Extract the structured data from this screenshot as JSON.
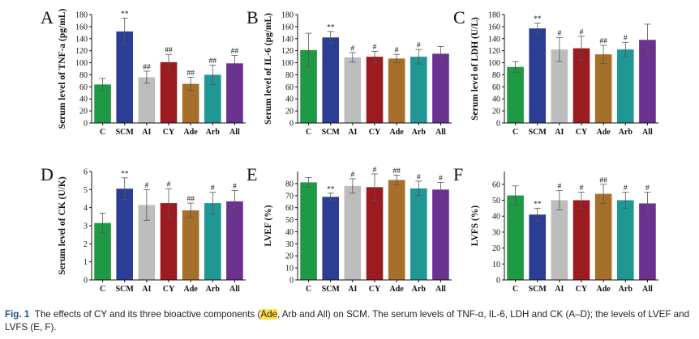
{
  "chart_data": [
    {
      "panel": "A",
      "type": "bar",
      "ylabel": "Serum level of TNF-a (pg/mL)",
      "categories": [
        "C",
        "SCM",
        "AI",
        "CY",
        "Ade",
        "Arb",
        "All"
      ],
      "values": [
        64,
        152,
        76,
        101,
        65,
        80,
        99
      ],
      "errors": [
        10,
        22,
        10,
        13,
        11,
        16,
        13
      ],
      "annotations": [
        "",
        "**",
        "##",
        "##",
        "##",
        "##",
        "##"
      ],
      "ylim": [
        0,
        180
      ],
      "yticks": [
        0,
        20,
        40,
        60,
        80,
        100,
        120,
        140,
        160,
        180
      ]
    },
    {
      "panel": "B",
      "type": "bar",
      "ylabel": "Serum level of IL-6 (pg/mL)",
      "categories": [
        "C",
        "SCM",
        "AI",
        "CY",
        "Ade",
        "Arb",
        "All"
      ],
      "values": [
        121,
        142,
        109,
        110,
        107,
        110,
        115
      ],
      "errors": [
        28,
        10,
        8,
        9,
        7,
        12,
        12
      ],
      "annotations": [
        "",
        "**",
        "#",
        "#",
        "#",
        "#",
        ""
      ],
      "ylim": [
        0,
        180
      ],
      "yticks": [
        0,
        20,
        40,
        60,
        80,
        100,
        120,
        140,
        160,
        180
      ]
    },
    {
      "panel": "C",
      "type": "bar",
      "ylabel": "Serum level of LDH (U/L)",
      "categories": [
        "C",
        "SCM",
        "AI",
        "CY",
        "Ade",
        "Arb",
        "All"
      ],
      "values": [
        93,
        157,
        122,
        124,
        114,
        122,
        138
      ],
      "errors": [
        9,
        9,
        20,
        20,
        15,
        12,
        26
      ],
      "annotations": [
        "",
        "**",
        "#",
        "#",
        "##",
        "#",
        ""
      ],
      "ylim": [
        0,
        180
      ],
      "yticks": [
        0,
        20,
        40,
        60,
        80,
        100,
        120,
        140,
        160,
        180
      ]
    },
    {
      "panel": "D",
      "type": "bar",
      "ylabel": "Serum level of CK (U/K)",
      "categories": [
        "C",
        "SCM",
        "AI",
        "CY",
        "Ade",
        "Arb",
        "All"
      ],
      "values": [
        3.15,
        5.05,
        4.15,
        4.25,
        3.85,
        4.25,
        4.35
      ],
      "errors": [
        0.55,
        0.6,
        0.85,
        0.8,
        0.4,
        0.6,
        0.6
      ],
      "annotations": [
        "",
        "**",
        "#",
        "#",
        "##",
        "#",
        "#"
      ],
      "ylim": [
        0,
        6
      ],
      "yticks": [
        0,
        1,
        2,
        3,
        4,
        5,
        6
      ]
    },
    {
      "panel": "E",
      "type": "bar",
      "ylabel": "LVEF (%)",
      "categories": [
        "C",
        "SCM",
        "AI",
        "CY",
        "Ade",
        "Arb",
        "All"
      ],
      "values": [
        81,
        69,
        78,
        77,
        83,
        76,
        75
      ],
      "errors": [
        4,
        3,
        6,
        11,
        4,
        6,
        6
      ],
      "annotations": [
        "",
        "**",
        "#",
        "#",
        "##",
        "#",
        "#"
      ],
      "ylim": [
        0,
        90
      ],
      "yticks": [
        0,
        10,
        20,
        30,
        40,
        50,
        60,
        70,
        80
      ]
    },
    {
      "panel": "F",
      "type": "bar",
      "ylabel": "LVFS (%)",
      "categories": [
        "C",
        "SCM",
        "AI",
        "CY",
        "Ade",
        "Arb",
        "All"
      ],
      "values": [
        53,
        41,
        50,
        50,
        54,
        50,
        48
      ],
      "errors": [
        6,
        4,
        6,
        5,
        6,
        5,
        7
      ],
      "annotations": [
        "",
        "**",
        "#",
        "#",
        "##",
        "#",
        "#"
      ],
      "ylim": [
        0,
        68
      ],
      "yticks": [
        0,
        10,
        20,
        30,
        40,
        50,
        60
      ]
    }
  ],
  "colors": [
    "#1e9a44",
    "#2b3d95",
    "#bdbdbd",
    "#9b1b21",
    "#a6702a",
    "#1f9795",
    "#6a3191"
  ],
  "caption": {
    "label": "Fig. 1",
    "text_before": "The effects of CY and its three bioactive components (",
    "highlight": "Ade",
    "text_after": ", Arb and All) on SCM. The serum levels of TNF-α, IL-6, LDH and CK (A–D); the levels of LVEF and LVFS (E, F)."
  }
}
